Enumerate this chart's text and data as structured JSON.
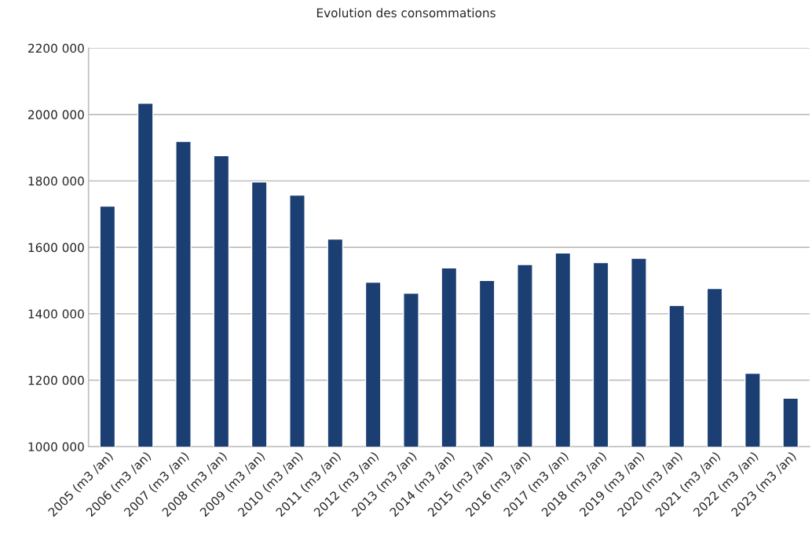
{
  "chart_data": {
    "type": "bar",
    "title": "Evolution des consommations",
    "categories": [
      "2005 (m3 /an)",
      "2006 (m3 /an)",
      "2007 (m3 /an)",
      "2008 (m3 /an)",
      "2009 (m3 /an)",
      "2010 (m3 /an)",
      "2011 (m3 /an)",
      "2012 (m3 /an)",
      "2013 (m3 /an)",
      "2014 (m3 /an)",
      "2015 (m3 /an)",
      "2016 (m3 /an)",
      "2017 (m3 /an)",
      "2018 (m3 /an)",
      "2019 (m3 /an)",
      "2020 (m3 /an)",
      "2021 (m3 /an)",
      "2022 (m3 /an)",
      "2023 (m3 /an)"
    ],
    "values": [
      1724000,
      2034000,
      1919000,
      1876000,
      1797000,
      1757000,
      1625000,
      1495000,
      1462000,
      1538000,
      1500000,
      1548000,
      1583000,
      1554000,
      1567000,
      1425000,
      1476000,
      1221000,
      1146000
    ],
    "color": "#1b3f73",
    "ylim": [
      1000000,
      2200000
    ],
    "yticks": [
      {
        "value": 1000000,
        "label": "1000 000"
      },
      {
        "value": 1200000,
        "label": "1200 000"
      },
      {
        "value": 1400000,
        "label": "1400 000"
      },
      {
        "value": 1600000,
        "label": "1600 000"
      },
      {
        "value": 1800000,
        "label": "1800 000"
      },
      {
        "value": 2000000,
        "label": "2000 000"
      },
      {
        "value": 2200000,
        "label": "2200 000"
      }
    ],
    "grid": "y",
    "legend": false
  }
}
